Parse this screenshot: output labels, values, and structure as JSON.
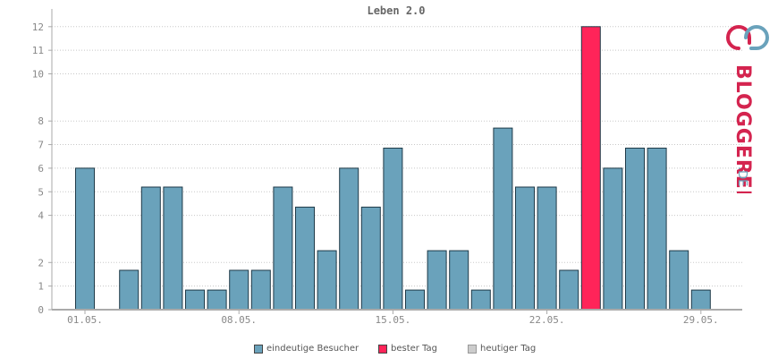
{
  "chart_data": {
    "type": "bar",
    "title": "Leben 2.0",
    "ylim": [
      0,
      12.6
    ],
    "yticks": [
      0,
      1,
      2,
      4,
      5,
      6,
      7,
      8,
      10,
      11,
      12
    ],
    "x_tick_labels": [
      {
        "label": "01.05.",
        "index": 0
      },
      {
        "label": "08.05.",
        "index": 7
      },
      {
        "label": "15.05.",
        "index": 14
      },
      {
        "label": "22.05.",
        "index": 21
      },
      {
        "label": "29.05.",
        "index": 28
      }
    ],
    "values": [
      6,
      0,
      1.67,
      5.2,
      5.2,
      0.83,
      0.83,
      1.67,
      1.67,
      5.2,
      4.35,
      2.5,
      6,
      4.35,
      6.85,
      0.83,
      2.5,
      2.5,
      0.83,
      7.7,
      5.2,
      5.2,
      1.67,
      12,
      6,
      6.85,
      6.85,
      2.5,
      0.83
    ],
    "highlight_index": 23,
    "colors": {
      "visitor": "#6aa2bb",
      "best": "#ff2459",
      "today": "#cccccc",
      "bar_stroke": "#1f3a48",
      "grid": "#c8c8c8",
      "axis": "#aaaaaa"
    },
    "grid": true
  },
  "legend": {
    "items": [
      {
        "label": "eindeutige Besucher",
        "color": "#6aa2bb"
      },
      {
        "label": "bester Tag",
        "color": "#ff2459"
      },
      {
        "label": "heutiger Tag",
        "color": "#cccccc"
      }
    ]
  },
  "logo": {
    "text": "BLOGGEREI",
    "tld": ".DE",
    "icon": "bloggerei-logo-icon"
  }
}
